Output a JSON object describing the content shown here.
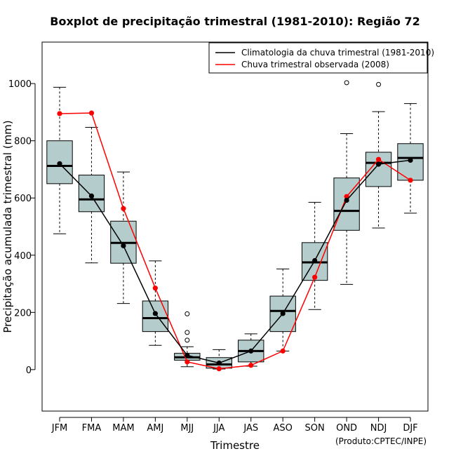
{
  "chart_data": {
    "type": "boxplot",
    "title": "Boxplot de precipitação trimestral (1981-2010): Região 72",
    "xlabel": "Trimestre",
    "ylabel": "Precipitação acumulada trimestral (mm)",
    "ylim": [
      -145,
      1145
    ],
    "yticks": [
      0,
      200,
      400,
      600,
      800,
      1000
    ],
    "credit": "(Produto:CPTEC/INPE)",
    "legend_position": "top-right",
    "categories": [
      "JFM",
      "FMA",
      "MAM",
      "AMJ",
      "MJJ",
      "JJA",
      "JAS",
      "ASO",
      "SON",
      "OND",
      "NDJ",
      "DJF"
    ],
    "boxes": [
      {
        "whisker_low": 475,
        "q1": 650,
        "median": 712,
        "q3": 800,
        "whisker_high": 987,
        "outliers": []
      },
      {
        "whisker_low": 373,
        "q1": 552,
        "median": 595,
        "q3": 680,
        "whisker_high": 847,
        "outliers": []
      },
      {
        "whisker_low": 231,
        "q1": 372,
        "median": 443,
        "q3": 519,
        "whisker_high": 691,
        "outliers": []
      },
      {
        "whisker_low": 85,
        "q1": 133,
        "median": 180,
        "q3": 240,
        "whisker_high": 380,
        "outliers": []
      },
      {
        "whisker_low": 10,
        "q1": 33,
        "median": 43,
        "q3": 57,
        "whisker_high": 80,
        "outliers": [
          103,
          130,
          195
        ]
      },
      {
        "whisker_low": 2,
        "q1": 5,
        "median": 18,
        "q3": 42,
        "whisker_high": 70,
        "outliers": []
      },
      {
        "whisker_low": 12,
        "q1": 27,
        "median": 65,
        "q3": 103,
        "whisker_high": 125,
        "outliers": []
      },
      {
        "whisker_low": 65,
        "q1": 133,
        "median": 205,
        "q3": 257,
        "whisker_high": 352,
        "outliers": []
      },
      {
        "whisker_low": 210,
        "q1": 312,
        "median": 375,
        "q3": 444,
        "whisker_high": 585,
        "outliers": []
      },
      {
        "whisker_low": 298,
        "q1": 487,
        "median": 555,
        "q3": 670,
        "whisker_high": 825,
        "outliers": [
          1003
        ]
      },
      {
        "whisker_low": 495,
        "q1": 640,
        "median": 723,
        "q3": 760,
        "whisker_high": 902,
        "outliers": [
          997
        ]
      },
      {
        "whisker_low": 547,
        "q1": 662,
        "median": 740,
        "q3": 790,
        "whisker_high": 930,
        "outliers": []
      }
    ],
    "series": [
      {
        "name": "Climatologia da chuva trimestral (1981-2010)",
        "color": "#000000",
        "values": [
          720,
          607,
          433,
          196,
          50,
          23,
          65,
          196,
          381,
          592,
          718,
          732
        ]
      },
      {
        "name": "Chuva trimestral observada (2008)",
        "color": "#ff0000",
        "values": [
          895,
          897,
          563,
          285,
          27,
          3,
          15,
          65,
          323,
          605,
          735,
          662
        ]
      }
    ],
    "box_fill": "#b5cccc"
  }
}
